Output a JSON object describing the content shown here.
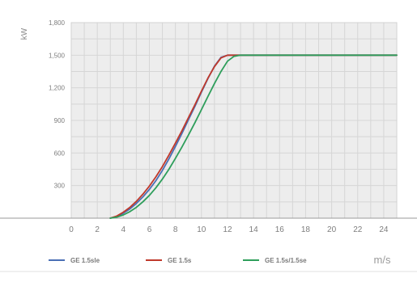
{
  "chart_data": {
    "type": "line",
    "title": "",
    "xlabel": "m/s",
    "ylabel": "kW",
    "xlim": [
      0,
      25
    ],
    "ylim": [
      0,
      1800
    ],
    "grid": true,
    "legend_position": "bottom",
    "x_ticks": [
      0,
      2,
      4,
      6,
      8,
      10,
      12,
      14,
      16,
      18,
      20,
      22,
      24
    ],
    "y_ticks": [
      300,
      600,
      900,
      1200,
      1500,
      1800
    ],
    "y_tick_labels": [
      "300",
      "600",
      "900",
      "1,200",
      "1,500",
      "1,800"
    ],
    "series": [
      {
        "name": "GE 1.5sle",
        "color": "#4a6fb5",
        "x": [
          3,
          3.5,
          4,
          4.5,
          5,
          5.5,
          6,
          6.5,
          7,
          7.5,
          8,
          8.5,
          9,
          9.5,
          10,
          10.5,
          11,
          11.5,
          12,
          13,
          14,
          16,
          18,
          20,
          22,
          24,
          25
        ],
        "y": [
          0,
          15,
          45,
          85,
          135,
          195,
          265,
          345,
          440,
          545,
          660,
          780,
          905,
          1030,
          1160,
          1285,
          1400,
          1480,
          1500,
          1500,
          1500,
          1500,
          1500,
          1500,
          1500,
          1500,
          1500
        ]
      },
      {
        "name": "GE 1.5s",
        "color": "#c0392b",
        "x": [
          3,
          3.5,
          4,
          4.5,
          5,
          5.5,
          6,
          6.5,
          7,
          7.5,
          8,
          8.5,
          9,
          9.5,
          10,
          10.5,
          11,
          11.5,
          12,
          13,
          14,
          16,
          18,
          20,
          22,
          24,
          25
        ],
        "y": [
          0,
          20,
          55,
          100,
          155,
          220,
          295,
          380,
          475,
          580,
          690,
          805,
          925,
          1045,
          1170,
          1290,
          1395,
          1475,
          1500,
          1500,
          1500,
          1500,
          1500,
          1500,
          1500,
          1500,
          1500
        ]
      },
      {
        "name": "GE 1.5s/1.5se",
        "color": "#2e9e5b",
        "x": [
          3,
          3.5,
          4,
          4.5,
          5,
          5.5,
          6,
          6.5,
          7,
          7.5,
          8,
          8.5,
          9,
          9.5,
          10,
          10.5,
          11,
          11.5,
          12,
          12.5,
          13,
          14,
          16,
          18,
          20,
          22,
          24,
          25
        ],
        "y": [
          0,
          10,
          30,
          60,
          100,
          150,
          210,
          280,
          360,
          450,
          550,
          655,
          765,
          880,
          1000,
          1120,
          1240,
          1350,
          1445,
          1490,
          1500,
          1500,
          1500,
          1500,
          1500,
          1500,
          1500,
          1500
        ]
      }
    ]
  }
}
